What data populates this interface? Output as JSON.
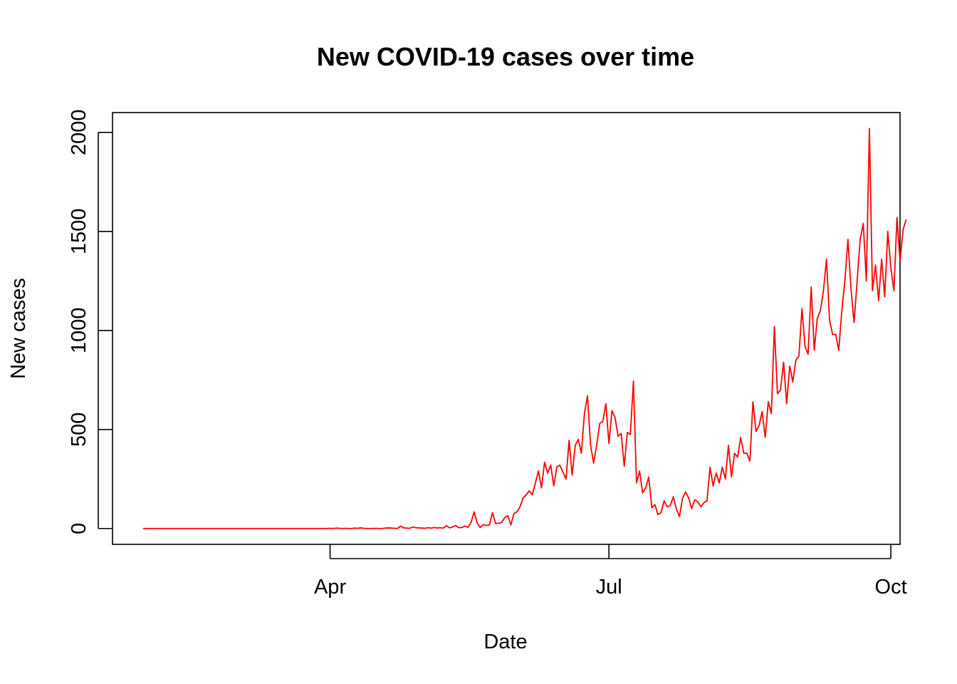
{
  "colors": {
    "series": "#ff0000",
    "axis": "#000000",
    "background": "#ffffff"
  },
  "chart_data": {
    "type": "line",
    "title": "New COVID-19 cases over time",
    "xlabel": "Date",
    "ylabel": "New cases",
    "grid": false,
    "legend": "none",
    "xlim": [
      "2020-01-21",
      "2020-10-04"
    ],
    "ylim": [
      -80,
      2100
    ],
    "x_ticks": [
      {
        "date": "2020-04-01",
        "label": "Apr"
      },
      {
        "date": "2020-07-01",
        "label": "Jul"
      },
      {
        "date": "2020-10-01",
        "label": "Oct"
      }
    ],
    "y_ticks": [
      {
        "value": 0,
        "label": "0"
      },
      {
        "value": 500,
        "label": "500"
      },
      {
        "value": 1000,
        "label": "1000"
      },
      {
        "value": 1500,
        "label": "1500"
      },
      {
        "value": 2000,
        "label": "2000"
      }
    ],
    "series": [
      {
        "x_start": "2020-01-31",
        "step_days": 1,
        "values": [
          0,
          0,
          0,
          0,
          0,
          0,
          0,
          0,
          0,
          0,
          0,
          0,
          0,
          0,
          0,
          0,
          0,
          0,
          0,
          0,
          0,
          0,
          0,
          0,
          0,
          0,
          0,
          0,
          0,
          0,
          0,
          0,
          0,
          0,
          0,
          0,
          0,
          0,
          0,
          0,
          0,
          0,
          0,
          0,
          0,
          0,
          0,
          0,
          0,
          0,
          0,
          0,
          0,
          0,
          0,
          0,
          0,
          0,
          0,
          0,
          0,
          1,
          0,
          2,
          1,
          0,
          1,
          0,
          0,
          2,
          1,
          3,
          1,
          0,
          0,
          0,
          1,
          0,
          0,
          2,
          3,
          2,
          1,
          0,
          12,
          3,
          2,
          1,
          8,
          4,
          3,
          2,
          1,
          4,
          2,
          5,
          3,
          4,
          2,
          14,
          3,
          8,
          15,
          4,
          5,
          12,
          6,
          30,
          84,
          28,
          5,
          20,
          15,
          18,
          80,
          25,
          26,
          30,
          55,
          65,
          18,
          75,
          85,
          110,
          155,
          170,
          190,
          170,
          230,
          290,
          205,
          335,
          280,
          320,
          215,
          310,
          320,
          285,
          250,
          445,
          270,
          420,
          450,
          380,
          580,
          670,
          420,
          330,
          420,
          530,
          540,
          630,
          430,
          595,
          560,
          465,
          480,
          315,
          485,
          475,
          745,
          230,
          290,
          180,
          205,
          260,
          105,
          120,
          70,
          80,
          140,
          110,
          115,
          160,
          100,
          60,
          150,
          185,
          155,
          100,
          145,
          135,
          110,
          130,
          140,
          310,
          215,
          280,
          230,
          310,
          250,
          420,
          260,
          380,
          360,
          460,
          380,
          380,
          340,
          640,
          490,
          520,
          590,
          460,
          640,
          580,
          1020,
          680,
          700,
          840,
          630,
          820,
          740,
          850,
          870,
          1110,
          920,
          880,
          1220,
          900,
          1060,
          1100,
          1200,
          1360,
          1050,
          980,
          980,
          900,
          1100,
          1250,
          1460,
          1210,
          1040,
          1250,
          1460,
          1540,
          1250,
          2020,
          1200,
          1330,
          1150,
          1360,
          1170,
          1500,
          1320,
          1200,
          1570,
          1350,
          1510,
          1560
        ]
      }
    ]
  }
}
